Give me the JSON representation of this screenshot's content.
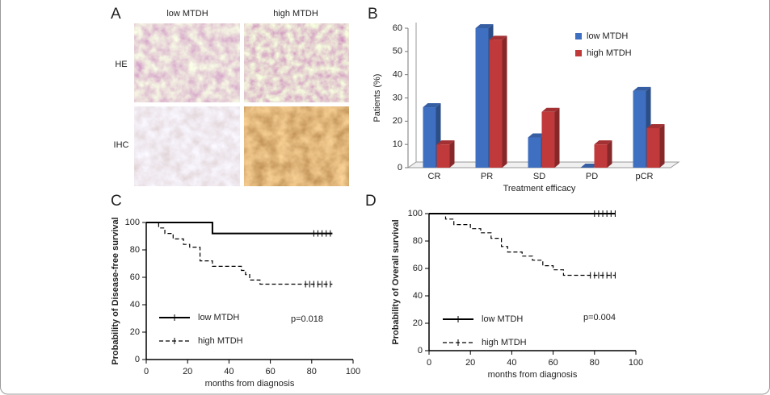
{
  "panel_a": {
    "label": "A",
    "columns": [
      "low MTDH",
      "high MTDH"
    ],
    "rows": [
      "HE",
      "IHC"
    ]
  },
  "chart_data": [
    {
      "type": "bar",
      "panel_label": "B",
      "x_label": "Treatment efficacy",
      "y_label": "Patients (%)",
      "categories": [
        "CR",
        "PR",
        "SD",
        "PD",
        "pCR"
      ],
      "series": [
        {
          "name": "low MTDH",
          "color": "#3f6fc0",
          "values": [
            26,
            60,
            13,
            0,
            33
          ]
        },
        {
          "name": "high MTDH",
          "color": "#c0393b",
          "values": [
            10,
            55,
            24,
            10,
            17
          ]
        }
      ],
      "ylim": [
        0,
        60
      ],
      "yticks": [
        0,
        10,
        20,
        30,
        40,
        50,
        60
      ],
      "legend": "upper-right"
    },
    {
      "type": "line",
      "panel_label": "C",
      "x_label": "months from diagnosis",
      "y_label": "Probability of Disease-free survival",
      "annotation": "p=0.018",
      "series": [
        {
          "name": "low MTDH",
          "color": "#000000",
          "dashed": false,
          "x": [
            0,
            32,
            32,
            90
          ],
          "values": [
            100,
            100,
            92,
            92
          ],
          "censored": [
            81,
            83,
            85,
            87,
            89
          ]
        },
        {
          "name": "high MTDH",
          "color": "#000000",
          "dashed": true,
          "x": [
            0,
            6,
            6,
            9,
            9,
            13,
            13,
            18,
            18,
            21,
            21,
            26,
            26,
            32,
            32,
            46,
            46,
            48,
            48,
            50,
            50,
            55,
            55,
            90
          ],
          "values": [
            100,
            100,
            96,
            96,
            92,
            92,
            88,
            88,
            84,
            84,
            82,
            82,
            72,
            72,
            68,
            68,
            65,
            65,
            62,
            62,
            58,
            58,
            55,
            55
          ],
          "censored": [
            77,
            79,
            81,
            83,
            85,
            87,
            89
          ]
        }
      ],
      "xlim": [
        0,
        100
      ],
      "xticks": [
        0,
        20,
        40,
        60,
        80,
        100
      ],
      "ylim": [
        0,
        100
      ],
      "yticks": [
        0,
        20,
        40,
        60,
        80,
        100
      ],
      "legend": "lower-left"
    },
    {
      "type": "line",
      "panel_label": "D",
      "x_label": "months from diagnosis",
      "y_label": "Probability of Overall survival",
      "annotation": "p=0.004",
      "series": [
        {
          "name": "low MTDH",
          "color": "#000000",
          "dashed": false,
          "x": [
            0,
            90
          ],
          "values": [
            100,
            100
          ],
          "censored": [
            80,
            82,
            84,
            86,
            88,
            90
          ]
        },
        {
          "name": "high MTDH",
          "color": "#000000",
          "dashed": true,
          "x": [
            0,
            8,
            8,
            12,
            12,
            20,
            20,
            25,
            25,
            30,
            30,
            35,
            35,
            38,
            38,
            45,
            45,
            50,
            50,
            55,
            55,
            60,
            60,
            65,
            65,
            90
          ],
          "values": [
            100,
            100,
            96,
            96,
            92,
            92,
            89,
            89,
            86,
            86,
            82,
            82,
            76,
            76,
            72,
            72,
            69,
            69,
            66,
            66,
            62,
            62,
            59,
            59,
            55,
            55
          ],
          "censored": [
            78,
            80,
            82,
            84,
            86,
            88,
            90
          ]
        }
      ],
      "xlim": [
        0,
        100
      ],
      "xticks": [
        0,
        20,
        40,
        60,
        80,
        100
      ],
      "ylim": [
        0,
        100
      ],
      "yticks": [
        0,
        20,
        40,
        60,
        80,
        100
      ],
      "legend": "lower-left"
    }
  ]
}
